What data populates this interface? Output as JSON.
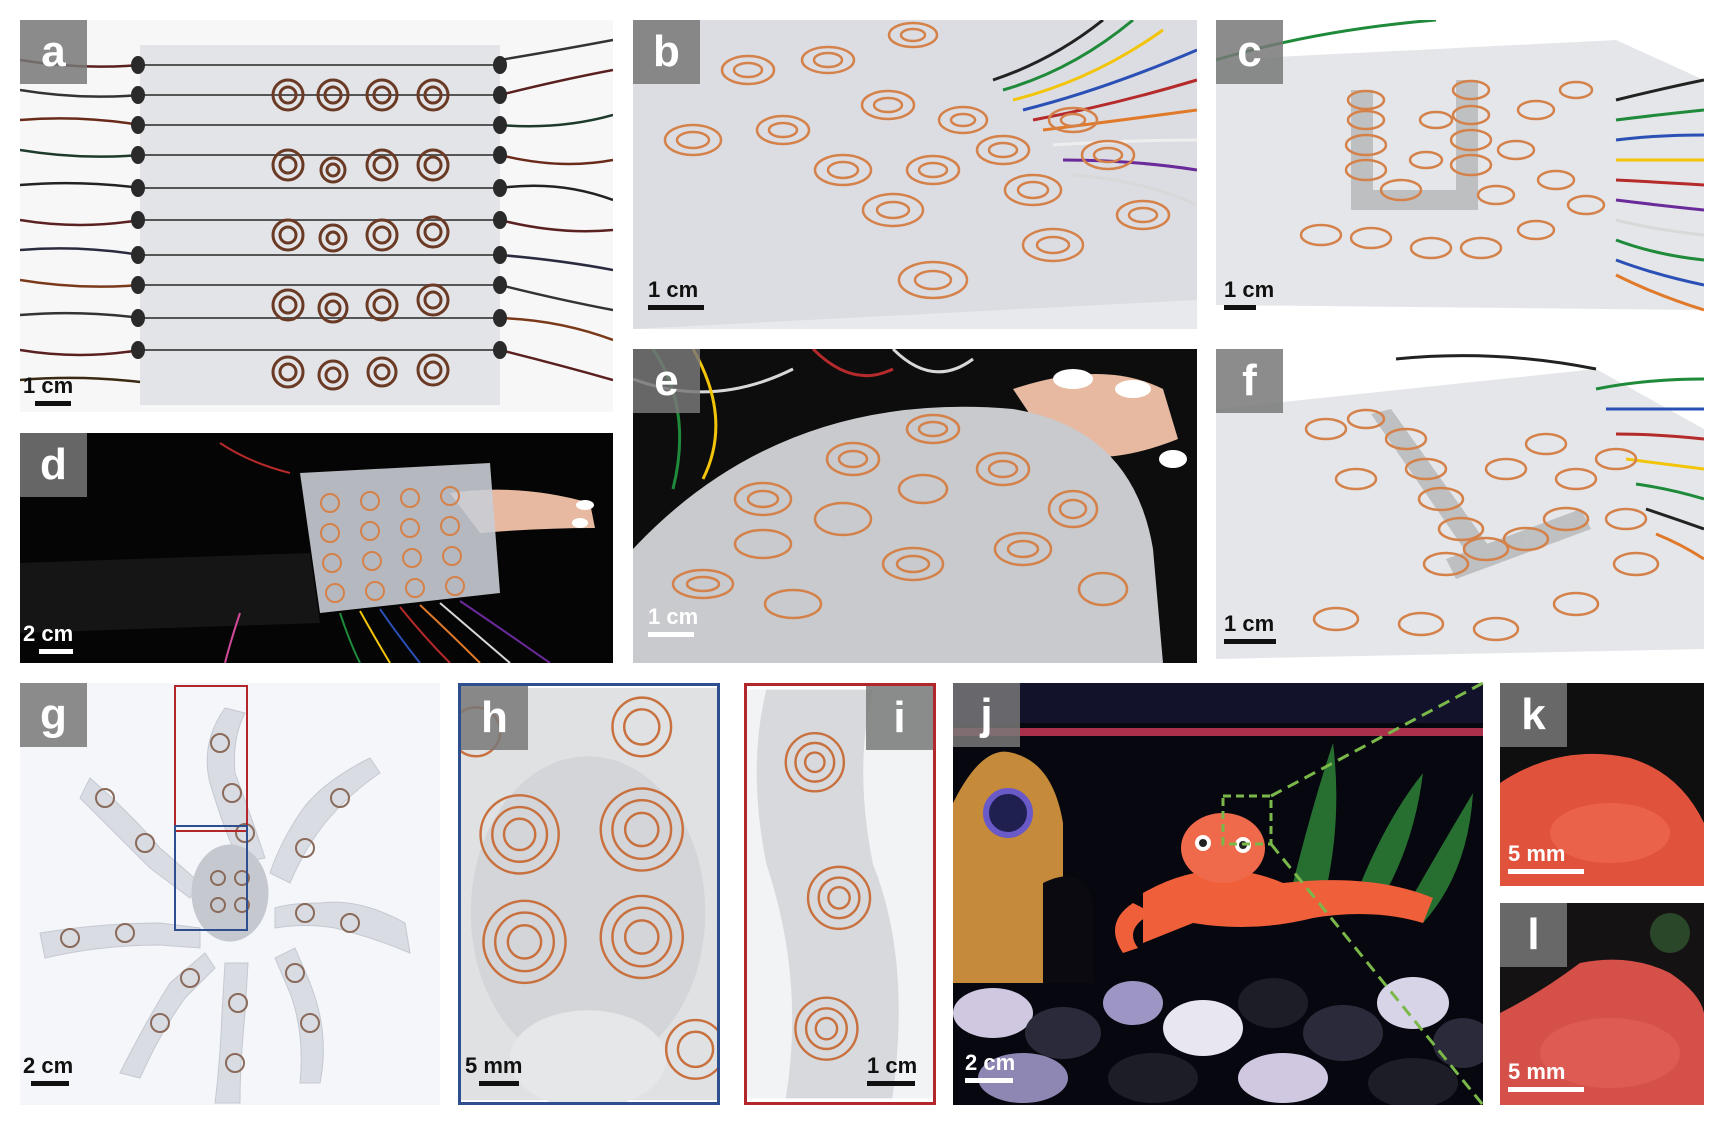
{
  "panels": {
    "a": {
      "label": "a",
      "scale": "1 cm"
    },
    "b": {
      "label": "b",
      "scale": "1 cm"
    },
    "c": {
      "label": "c",
      "scale": "1 cm"
    },
    "d": {
      "label": "d",
      "scale": "2 cm"
    },
    "e": {
      "label": "e",
      "scale": "1 cm"
    },
    "f": {
      "label": "f",
      "scale": "1 cm"
    },
    "g": {
      "label": "g",
      "scale": "2 cm"
    },
    "h": {
      "label": "h",
      "scale": "5 mm"
    },
    "i": {
      "label": "i",
      "scale": "1 cm"
    },
    "j": {
      "label": "j",
      "scale": "2 cm"
    },
    "k": {
      "label": "k",
      "scale": "5 mm"
    },
    "l": {
      "label": "l",
      "scale": "5 mm"
    }
  },
  "colors": {
    "copper": "#c8703e",
    "silicone": "#e4e6ea",
    "frame_blue": "#2e4f8f",
    "frame_red": "#b3262a",
    "zoom_green": "#7bb84a",
    "tag_gray": "#7a7a7a"
  }
}
